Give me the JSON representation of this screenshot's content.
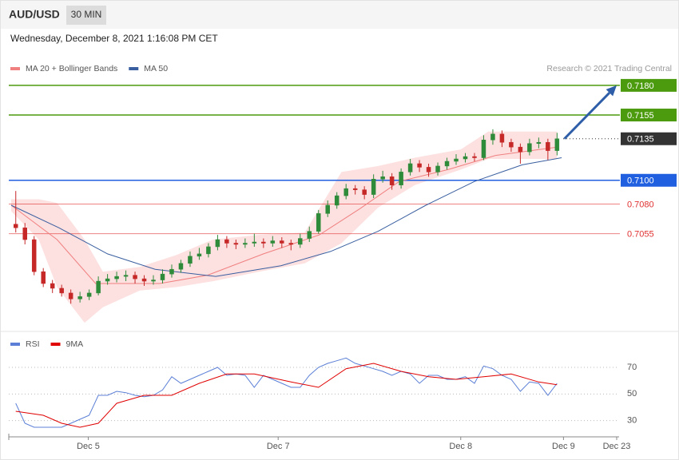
{
  "header": {
    "symbol": "AUD/USD",
    "interval": "30 MIN",
    "datetime": "Wednesday, December 8, 2021 1:16:08 PM CET",
    "credit": "Research © 2021 Trading Central"
  },
  "chart_data": [
    {
      "type": "candlestick",
      "xlim": [
        0,
        66
      ],
      "ylim": [
        0.6976,
        0.7188
      ],
      "candles": {
        "up_color": "#2e8b3a",
        "down_color": "#c62828",
        "open": [
          0.7063,
          0.706,
          0.705,
          0.7023,
          0.7013,
          0.7009,
          0.7005,
          0.7,
          0.7002,
          0.7005,
          0.7015,
          0.7017,
          0.7019,
          0.702,
          0.7017,
          0.7015,
          0.7016,
          0.7021,
          0.7025,
          0.703,
          0.7036,
          0.7038,
          0.7044,
          0.705,
          0.7047,
          0.7046,
          0.7047,
          0.7048,
          0.7047,
          0.7049,
          0.7047,
          0.7046,
          0.7051,
          0.7057,
          0.7072,
          0.7079,
          0.7087,
          0.7093,
          0.7092,
          0.7088,
          0.7101,
          0.7103,
          0.7096,
          0.7107,
          0.7114,
          0.7111,
          0.7107,
          0.7112,
          0.7116,
          0.7118,
          0.712,
          0.7119,
          0.7134,
          0.7139,
          0.7132,
          0.7128,
          0.7124,
          0.7131,
          0.7132,
          0.7125
        ],
        "high": [
          0.7091,
          0.7064,
          0.7053,
          0.7026,
          0.7016,
          0.7012,
          0.7008,
          0.7006,
          0.7008,
          0.7019,
          0.7021,
          0.7023,
          0.7024,
          0.7023,
          0.702,
          0.702,
          0.7025,
          0.7029,
          0.7033,
          0.704,
          0.7043,
          0.7047,
          0.7054,
          0.7053,
          0.705,
          0.7051,
          0.7055,
          0.7051,
          0.7053,
          0.7052,
          0.705,
          0.7055,
          0.7061,
          0.7075,
          0.7083,
          0.709,
          0.7097,
          0.7096,
          0.7095,
          0.7105,
          0.7108,
          0.7106,
          0.711,
          0.7118,
          0.7117,
          0.7114,
          0.7115,
          0.7119,
          0.7122,
          0.7123,
          0.7123,
          0.7138,
          0.7143,
          0.7142,
          0.7135,
          0.7131,
          0.7135,
          0.7136,
          0.7135,
          0.714
        ],
        "low": [
          0.7056,
          0.7046,
          0.702,
          0.701,
          0.7005,
          0.7002,
          0.6996,
          0.6997,
          0.6999,
          0.7003,
          0.7012,
          0.7014,
          0.7015,
          0.7013,
          0.7011,
          0.7012,
          0.7013,
          0.7018,
          0.7022,
          0.7027,
          0.7033,
          0.7035,
          0.7041,
          0.7043,
          0.7042,
          0.7043,
          0.7044,
          0.7043,
          0.7044,
          0.7043,
          0.7041,
          0.7043,
          0.7048,
          0.7055,
          0.7069,
          0.7076,
          0.7084,
          0.7088,
          0.7084,
          0.7085,
          0.7098,
          0.7092,
          0.7093,
          0.7104,
          0.7107,
          0.7103,
          0.7104,
          0.7109,
          0.7113,
          0.7115,
          0.7116,
          0.7117,
          0.713,
          0.7128,
          0.7124,
          0.7114,
          0.7121,
          0.7127,
          0.7117,
          0.7121
        ],
        "close": [
          0.706,
          0.705,
          0.7023,
          0.7013,
          0.7009,
          0.7005,
          0.7,
          0.7002,
          0.7005,
          0.7015,
          0.7017,
          0.7019,
          0.702,
          0.7017,
          0.7015,
          0.7016,
          0.7021,
          0.7025,
          0.703,
          0.7036,
          0.7038,
          0.7044,
          0.705,
          0.7047,
          0.7046,
          0.7047,
          0.7048,
          0.7047,
          0.7049,
          0.7047,
          0.7046,
          0.7051,
          0.7057,
          0.7072,
          0.7079,
          0.7087,
          0.7093,
          0.7092,
          0.7088,
          0.7101,
          0.7103,
          0.7096,
          0.7107,
          0.7114,
          0.7111,
          0.7107,
          0.7112,
          0.7116,
          0.7118,
          0.712,
          0.7119,
          0.7134,
          0.7139,
          0.7132,
          0.7128,
          0.7124,
          0.7131,
          0.7132,
          0.7125,
          0.7135
        ]
      },
      "bands": {
        "color": "#fde0e0",
        "x": [
          0,
          3,
          5,
          8,
          10,
          14,
          18,
          22,
          27,
          32,
          36,
          40,
          44,
          49,
          52,
          59.5
        ],
        "upper": [
          0.7084,
          0.7084,
          0.7081,
          0.705,
          0.7023,
          0.7027,
          0.7037,
          0.705,
          0.7054,
          0.7056,
          0.7107,
          0.7112,
          0.7119,
          0.7126,
          0.7141,
          0.7141
        ],
        "lower": [
          0.7074,
          0.705,
          0.701,
          0.698,
          0.6993,
          0.7007,
          0.701,
          0.7015,
          0.7023,
          0.703,
          0.7047,
          0.7077,
          0.7096,
          0.7109,
          0.7118,
          0.7118
        ]
      },
      "series": [
        {
          "name": "MA 20 + Bollinger Bands",
          "color": "#f08080",
          "x": [
            0,
            5,
            9.2,
            16.2,
            21.4,
            27.5,
            33.6,
            38,
            42.3,
            47.6,
            52.8,
            59.5
          ],
          "values": [
            0.7079,
            0.705,
            0.7013,
            0.7013,
            0.702,
            0.7038,
            0.7054,
            0.7076,
            0.7099,
            0.7109,
            0.7121,
            0.7128
          ]
        },
        {
          "name": "MA 50",
          "color": "#3a5fa0",
          "x": [
            0,
            5.2,
            10.5,
            15.7,
            22.3,
            29.4,
            34.8,
            40,
            45.2,
            50.5,
            55.7,
            60
          ],
          "values": [
            0.7079,
            0.706,
            0.7038,
            0.7025,
            0.7019,
            0.7028,
            0.704,
            0.7057,
            0.7079,
            0.7099,
            0.7113,
            0.7119
          ]
        }
      ],
      "levels": [
        {
          "value": 0.718,
          "label": "0.7180",
          "color": "#4c9a0e",
          "style": "box"
        },
        {
          "value": 0.7155,
          "label": "0.7155",
          "color": "#4c9a0e",
          "style": "box"
        },
        {
          "value": 0.7135,
          "label": "0.7135",
          "color": "#333333",
          "style": "dotted"
        },
        {
          "value": 0.71,
          "label": "0.7100",
          "color": "#1f5fe0",
          "style": "box"
        },
        {
          "value": 0.708,
          "label": "0.7080",
          "color": "#e03030",
          "style": "plain"
        },
        {
          "value": 0.7055,
          "label": "0.7055",
          "color": "#e03030",
          "style": "plain"
        }
      ],
      "arrow": {
        "from": [
          60.3,
          0.7135
        ],
        "to": [
          66,
          0.718
        ],
        "color": "#2f5ea8"
      }
    },
    {
      "type": "line",
      "xlim": [
        0,
        66
      ],
      "ylim": [
        19,
        82
      ],
      "yticks": [
        30,
        50,
        70
      ],
      "grid": true,
      "xticks": [
        {
          "value": 8.4,
          "label": "Dec 5"
        },
        {
          "value": 29.1,
          "label": "Dec 7"
        },
        {
          "value": 49,
          "label": "Dec 8"
        },
        {
          "value": 60.2,
          "label": "Dec 9"
        },
        {
          "value": 66,
          "label": "Dec 23"
        }
      ],
      "series": [
        {
          "name": "RSI",
          "color": "#5b7fd6",
          "values": [
            43,
            28,
            25,
            25,
            25,
            25,
            28,
            31,
            34,
            49,
            49,
            52,
            51,
            49,
            48,
            49,
            53,
            63,
            58,
            61,
            64,
            67,
            70,
            64,
            65,
            64,
            55,
            64,
            61,
            58,
            55,
            55,
            64,
            70,
            73,
            75,
            77,
            73,
            71,
            69,
            67,
            64,
            67,
            65,
            58,
            64,
            64,
            61,
            61,
            63,
            58,
            71,
            69,
            64,
            61,
            52,
            59,
            58,
            49,
            58
          ]
        },
        {
          "name": "9MA",
          "color": "#e00000",
          "x": [
            0.5,
            3.5,
            5.5,
            7.5,
            9.5,
            11.5,
            14.5,
            17.5,
            20.5,
            23.5,
            26.5,
            30.5,
            33.5,
            36.5,
            39.5,
            42.5,
            45.5,
            48.5,
            51.5,
            54.5,
            57.5,
            59.5
          ],
          "values": [
            37,
            34,
            28,
            25,
            28,
            43,
            49,
            49,
            58,
            65,
            65,
            59,
            55,
            69,
            73,
            67,
            63,
            61,
            63,
            65,
            59,
            57
          ]
        }
      ]
    }
  ]
}
